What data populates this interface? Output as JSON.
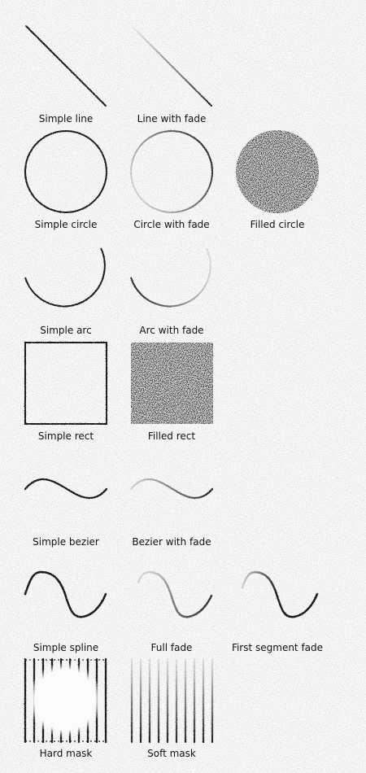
{
  "ink_color": "#1a1a1a",
  "background_color": "#fbfbfb",
  "labels": {
    "simple_line": "Simple line",
    "line_with_fade": "Line with fade",
    "simple_circle": "Simple circle",
    "circle_with_fade": "Circle with fade",
    "filled_circle": "Filled circle",
    "simple_arc": "Simple arc",
    "arc_with_fade": "Arc with fade",
    "simple_rect": "Simple rect",
    "filled_rect": "Filled rect",
    "simple_bezier": "Simple bezier",
    "bezier_with_fade": "Bezier with fade",
    "simple_spline": "Simple spline",
    "full_fade": "Full fade",
    "first_segment_fade": "First segment fade",
    "hard_mask": "Hard mask",
    "soft_mask": "Soft mask"
  }
}
